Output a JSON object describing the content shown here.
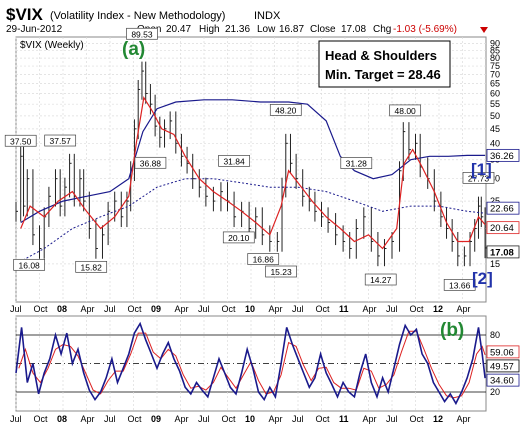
{
  "header": {
    "symbol": "$VIX",
    "name": "(Volatility Index - New Methodology)",
    "exchange": "INDX",
    "date": "29-Jun-2012",
    "open_label": "Open",
    "open": "20.47",
    "high_label": "High",
    "high": "21.36",
    "low_label": "Low",
    "low": "16.87",
    "close_label": "Close",
    "close": "17.08",
    "chg_label": "Chg",
    "chg": "-1.03 (-5.69%)",
    "chg_color": "#cc0000"
  },
  "chart_data": [
    {
      "type": "bar",
      "title": "$VIX (Weekly)",
      "ylim": [
        11,
        95
      ],
      "log_scale": true,
      "grid": true,
      "x_tick_labels": [
        "Jul",
        "Oct",
        "08",
        "Apr",
        "Jul",
        "Oct",
        "09",
        "Apr",
        "Jul",
        "Oct",
        "10",
        "Apr",
        "Jul",
        "Oct",
        "11",
        "Apr",
        "Jul",
        "Oct",
        "12",
        "Apr"
      ],
      "y_ticks": [
        15,
        20,
        25,
        30,
        35,
        40,
        45,
        50,
        55,
        60,
        65,
        70,
        75,
        80,
        85,
        90
      ],
      "price_labels": [
        "37.50",
        "16.08",
        "37.57",
        "15.82",
        "89.53",
        "36.88",
        "31.84",
        "20.10",
        "16.86",
        "48.20",
        "15.23",
        "31.28",
        "14.27",
        "48.00",
        "13.66",
        "27.73"
      ],
      "right_values": [
        "36.26",
        "22.66",
        "20.64",
        "17.08"
      ],
      "annotation_box": [
        "Head & Shoulders",
        "Min. Target = 28.46"
      ],
      "wave_labels": [
        "(a)",
        "[1]",
        "[2]"
      ],
      "colors": {
        "price": "#222222",
        "ema": "#dd2222",
        "ma_long": "#1a1a8c",
        "ma_dotted": "#1a1a8c",
        "wave_a": "#228833",
        "wave_12": "#2233aa"
      },
      "price_path": [
        [
          2007.5,
          23
        ],
        [
          2007.55,
          36
        ],
        [
          2007.58,
          24
        ],
        [
          2007.62,
          30
        ],
        [
          2007.68,
          19
        ],
        [
          2007.75,
          17
        ],
        [
          2007.8,
          22
        ],
        [
          2007.85,
          26
        ],
        [
          2007.92,
          30
        ],
        [
          2007.97,
          24
        ],
        [
          2008.02,
          28
        ],
        [
          2008.07,
          34
        ],
        [
          2008.12,
          26
        ],
        [
          2008.18,
          30
        ],
        [
          2008.22,
          25
        ],
        [
          2008.28,
          20
        ],
        [
          2008.35,
          17
        ],
        [
          2008.42,
          19
        ],
        [
          2008.48,
          23
        ],
        [
          2008.55,
          25
        ],
        [
          2008.62,
          22
        ],
        [
          2008.68,
          25
        ],
        [
          2008.72,
          32
        ],
        [
          2008.76,
          45
        ],
        [
          2008.8,
          62
        ],
        [
          2008.84,
          72
        ],
        [
          2008.88,
          60
        ],
        [
          2008.93,
          55
        ],
        [
          2008.98,
          46
        ],
        [
          2009.03,
          42
        ],
        [
          2009.08,
          45
        ],
        [
          2009.14,
          48
        ],
        [
          2009.2,
          40
        ],
        [
          2009.26,
          36
        ],
        [
          2009.32,
          34
        ],
        [
          2009.38,
          30
        ],
        [
          2009.45,
          28
        ],
        [
          2009.52,
          26
        ],
        [
          2009.6,
          25
        ],
        [
          2009.68,
          27
        ],
        [
          2009.75,
          25
        ],
        [
          2009.82,
          22
        ],
        [
          2009.9,
          23
        ],
        [
          2009.98,
          20
        ],
        [
          2010.05,
          22
        ],
        [
          2010.12,
          19
        ],
        [
          2010.2,
          18
        ],
        [
          2010.28,
          18
        ],
        [
          2010.33,
          28
        ],
        [
          2010.37,
          40
        ],
        [
          2010.42,
          34
        ],
        [
          2010.48,
          30
        ],
        [
          2010.55,
          26
        ],
        [
          2010.62,
          25
        ],
        [
          2010.68,
          23
        ],
        [
          2010.75,
          22
        ],
        [
          2010.82,
          21
        ],
        [
          2010.9,
          19
        ],
        [
          2010.98,
          18
        ],
        [
          2011.05,
          17
        ],
        [
          2011.12,
          20
        ],
        [
          2011.2,
          22
        ],
        [
          2011.28,
          18
        ],
        [
          2011.35,
          16
        ],
        [
          2011.42,
          17
        ],
        [
          2011.5,
          18
        ],
        [
          2011.58,
          32
        ],
        [
          2011.62,
          44
        ],
        [
          2011.68,
          38
        ],
        [
          2011.75,
          40
        ],
        [
          2011.8,
          33
        ],
        [
          2011.88,
          30
        ],
        [
          2011.95,
          25
        ],
        [
          2012.02,
          22
        ],
        [
          2012.08,
          20
        ],
        [
          2012.14,
          18
        ],
        [
          2012.2,
          16
        ],
        [
          2012.27,
          16
        ],
        [
          2012.33,
          18
        ],
        [
          2012.38,
          20
        ],
        [
          2012.42,
          24
        ],
        [
          2012.45,
          22
        ],
        [
          2012.49,
          17.08
        ]
      ],
      "ema_path": [
        [
          2007.55,
          20
        ],
        [
          2007.65,
          24
        ],
        [
          2007.8,
          22
        ],
        [
          2007.95,
          25
        ],
        [
          2008.1,
          27
        ],
        [
          2008.25,
          23
        ],
        [
          2008.4,
          20
        ],
        [
          2008.55,
          22
        ],
        [
          2008.7,
          26
        ],
        [
          2008.78,
          40
        ],
        [
          2008.86,
          58
        ],
        [
          2008.95,
          52
        ],
        [
          2009.05,
          45
        ],
        [
          2009.18,
          43
        ],
        [
          2009.3,
          36
        ],
        [
          2009.45,
          30
        ],
        [
          2009.6,
          27
        ],
        [
          2009.75,
          25
        ],
        [
          2009.9,
          23
        ],
        [
          2010.05,
          21
        ],
        [
          2010.2,
          19
        ],
        [
          2010.32,
          24
        ],
        [
          2010.4,
          32
        ],
        [
          2010.5,
          29
        ],
        [
          2010.65,
          25
        ],
        [
          2010.8,
          22
        ],
        [
          2010.95,
          20
        ],
        [
          2011.1,
          18
        ],
        [
          2011.25,
          19
        ],
        [
          2011.4,
          17
        ],
        [
          2011.55,
          20
        ],
        [
          2011.63,
          34
        ],
        [
          2011.72,
          38
        ],
        [
          2011.82,
          33
        ],
        [
          2011.95,
          27
        ],
        [
          2012.08,
          21
        ],
        [
          2012.2,
          18
        ],
        [
          2012.32,
          18
        ],
        [
          2012.42,
          22
        ],
        [
          2012.49,
          20.64
        ]
      ],
      "ma_long_path": [
        [
          2007.55,
          21
        ],
        [
          2007.75,
          23
        ],
        [
          2008.0,
          25
        ],
        [
          2008.25,
          26
        ],
        [
          2008.5,
          27
        ],
        [
          2008.7,
          30
        ],
        [
          2008.85,
          44
        ],
        [
          2009.0,
          53
        ],
        [
          2009.2,
          56
        ],
        [
          2009.5,
          57
        ],
        [
          2009.8,
          57
        ],
        [
          2010.1,
          56
        ],
        [
          2010.4,
          56
        ],
        [
          2010.6,
          55
        ],
        [
          2010.8,
          48
        ],
        [
          2010.95,
          36
        ],
        [
          2011.1,
          32
        ],
        [
          2011.3,
          30
        ],
        [
          2011.5,
          31
        ],
        [
          2011.7,
          35
        ],
        [
          2011.9,
          36
        ],
        [
          2012.1,
          36
        ],
        [
          2012.3,
          36.26
        ],
        [
          2012.49,
          36.26
        ]
      ],
      "ma_dotted_path": [
        [
          2007.5,
          15
        ],
        [
          2007.8,
          17
        ],
        [
          2008.1,
          20
        ],
        [
          2008.4,
          22
        ],
        [
          2008.7,
          24
        ],
        [
          2009.0,
          28
        ],
        [
          2009.3,
          30
        ],
        [
          2009.6,
          30
        ],
        [
          2009.9,
          29
        ],
        [
          2010.2,
          28
        ],
        [
          2010.5,
          28
        ],
        [
          2010.8,
          27
        ],
        [
          2011.1,
          25
        ],
        [
          2011.4,
          23
        ],
        [
          2011.7,
          24
        ],
        [
          2012.0,
          24
        ],
        [
          2012.3,
          23
        ],
        [
          2012.49,
          22.66
        ]
      ]
    },
    {
      "type": "line",
      "title": "",
      "ylim": [
        0,
        100
      ],
      "y_ticks": [
        20,
        50,
        80
      ],
      "right_values": [
        "59.06",
        "49.57",
        "34.60"
      ],
      "wave_labels": [
        "(b)"
      ],
      "x_tick_labels": [
        "Jul",
        "Oct",
        "08",
        "Apr",
        "Jul",
        "Oct",
        "09",
        "Apr",
        "Jul",
        "Oct",
        "10",
        "Apr",
        "Jul",
        "Oct",
        "11",
        "Apr",
        "Jul",
        "Oct",
        "12",
        "Apr"
      ],
      "colors": {
        "osc": "#1a1a8c",
        "signal": "#dd2222"
      },
      "osc_path": [
        [
          2007.5,
          40
        ],
        [
          2007.56,
          88
        ],
        [
          2007.62,
          30
        ],
        [
          2007.68,
          50
        ],
        [
          2007.74,
          18
        ],
        [
          2007.8,
          40
        ],
        [
          2007.86,
          55
        ],
        [
          2007.92,
          80
        ],
        [
          2007.98,
          60
        ],
        [
          2008.04,
          82
        ],
        [
          2008.1,
          50
        ],
        [
          2008.16,
          65
        ],
        [
          2008.22,
          40
        ],
        [
          2008.28,
          22
        ],
        [
          2008.34,
          12
        ],
        [
          2008.4,
          20
        ],
        [
          2008.46,
          35
        ],
        [
          2008.52,
          55
        ],
        [
          2008.58,
          30
        ],
        [
          2008.64,
          45
        ],
        [
          2008.7,
          60
        ],
        [
          2008.76,
          82
        ],
        [
          2008.82,
          92
        ],
        [
          2008.88,
          75
        ],
        [
          2008.94,
          60
        ],
        [
          2009.0,
          45
        ],
        [
          2009.06,
          60
        ],
        [
          2009.12,
          72
        ],
        [
          2009.18,
          55
        ],
        [
          2009.24,
          42
        ],
        [
          2009.3,
          25
        ],
        [
          2009.36,
          18
        ],
        [
          2009.42,
          30
        ],
        [
          2009.48,
          22
        ],
        [
          2009.54,
          15
        ],
        [
          2009.6,
          35
        ],
        [
          2009.66,
          55
        ],
        [
          2009.72,
          40
        ],
        [
          2009.78,
          25
        ],
        [
          2009.84,
          18
        ],
        [
          2009.9,
          40
        ],
        [
          2009.96,
          65
        ],
        [
          2010.02,
          45
        ],
        [
          2010.08,
          20
        ],
        [
          2010.14,
          12
        ],
        [
          2010.2,
          25
        ],
        [
          2010.26,
          15
        ],
        [
          2010.32,
          50
        ],
        [
          2010.38,
          88
        ],
        [
          2010.44,
          70
        ],
        [
          2010.5,
          55
        ],
        [
          2010.56,
          40
        ],
        [
          2010.62,
          25
        ],
        [
          2010.68,
          35
        ],
        [
          2010.74,
          60
        ],
        [
          2010.8,
          40
        ],
        [
          2010.86,
          28
        ],
        [
          2010.92,
          15
        ],
        [
          2010.98,
          30
        ],
        [
          2011.04,
          20
        ],
        [
          2011.1,
          15
        ],
        [
          2011.16,
          40
        ],
        [
          2011.22,
          60
        ],
        [
          2011.28,
          30
        ],
        [
          2011.34,
          15
        ],
        [
          2011.4,
          35
        ],
        [
          2011.46,
          20
        ],
        [
          2011.52,
          45
        ],
        [
          2011.58,
          70
        ],
        [
          2011.64,
          90
        ],
        [
          2011.7,
          80
        ],
        [
          2011.76,
          86
        ],
        [
          2011.82,
          60
        ],
        [
          2011.88,
          50
        ],
        [
          2011.94,
          30
        ],
        [
          2012.0,
          20
        ],
        [
          2012.06,
          10
        ],
        [
          2012.12,
          18
        ],
        [
          2012.18,
          8
        ],
        [
          2012.24,
          20
        ],
        [
          2012.3,
          35
        ],
        [
          2012.36,
          55
        ],
        [
          2012.42,
          88
        ],
        [
          2012.46,
          60
        ],
        [
          2012.49,
          34.6
        ]
      ],
      "signal_path": [
        [
          2007.53,
          45
        ],
        [
          2007.6,
          65
        ],
        [
          2007.68,
          40
        ],
        [
          2007.76,
          30
        ],
        [
          2007.84,
          45
        ],
        [
          2007.92,
          65
        ],
        [
          2008.0,
          70
        ],
        [
          2008.08,
          68
        ],
        [
          2008.16,
          58
        ],
        [
          2008.24,
          40
        ],
        [
          2008.32,
          22
        ],
        [
          2008.4,
          18
        ],
        [
          2008.48,
          32
        ],
        [
          2008.56,
          42
        ],
        [
          2008.64,
          42
        ],
        [
          2008.72,
          60
        ],
        [
          2008.8,
          82
        ],
        [
          2008.88,
          82
        ],
        [
          2008.96,
          62
        ],
        [
          2009.04,
          55
        ],
        [
          2009.12,
          65
        ],
        [
          2009.2,
          58
        ],
        [
          2009.28,
          38
        ],
        [
          2009.36,
          24
        ],
        [
          2009.44,
          26
        ],
        [
          2009.52,
          22
        ],
        [
          2009.6,
          30
        ],
        [
          2009.68,
          46
        ],
        [
          2009.76,
          35
        ],
        [
          2009.84,
          24
        ],
        [
          2009.92,
          38
        ],
        [
          2010.0,
          52
        ],
        [
          2010.08,
          32
        ],
        [
          2010.16,
          18
        ],
        [
          2010.24,
          20
        ],
        [
          2010.32,
          38
        ],
        [
          2010.4,
          72
        ],
        [
          2010.48,
          68
        ],
        [
          2010.56,
          48
        ],
        [
          2010.64,
          32
        ],
        [
          2010.72,
          45
        ],
        [
          2010.8,
          46
        ],
        [
          2010.88,
          30
        ],
        [
          2010.96,
          24
        ],
        [
          2011.04,
          24
        ],
        [
          2011.12,
          22
        ],
        [
          2011.2,
          45
        ],
        [
          2011.28,
          42
        ],
        [
          2011.36,
          24
        ],
        [
          2011.44,
          28
        ],
        [
          2011.52,
          38
        ],
        [
          2011.6,
          62
        ],
        [
          2011.68,
          84
        ],
        [
          2011.76,
          84
        ],
        [
          2011.84,
          65
        ],
        [
          2011.92,
          45
        ],
        [
          2012.0,
          28
        ],
        [
          2012.08,
          16
        ],
        [
          2012.16,
          14
        ],
        [
          2012.24,
          16
        ],
        [
          2012.32,
          30
        ],
        [
          2012.4,
          60
        ],
        [
          2012.46,
          68
        ],
        [
          2012.49,
          59.06
        ]
      ]
    }
  ]
}
